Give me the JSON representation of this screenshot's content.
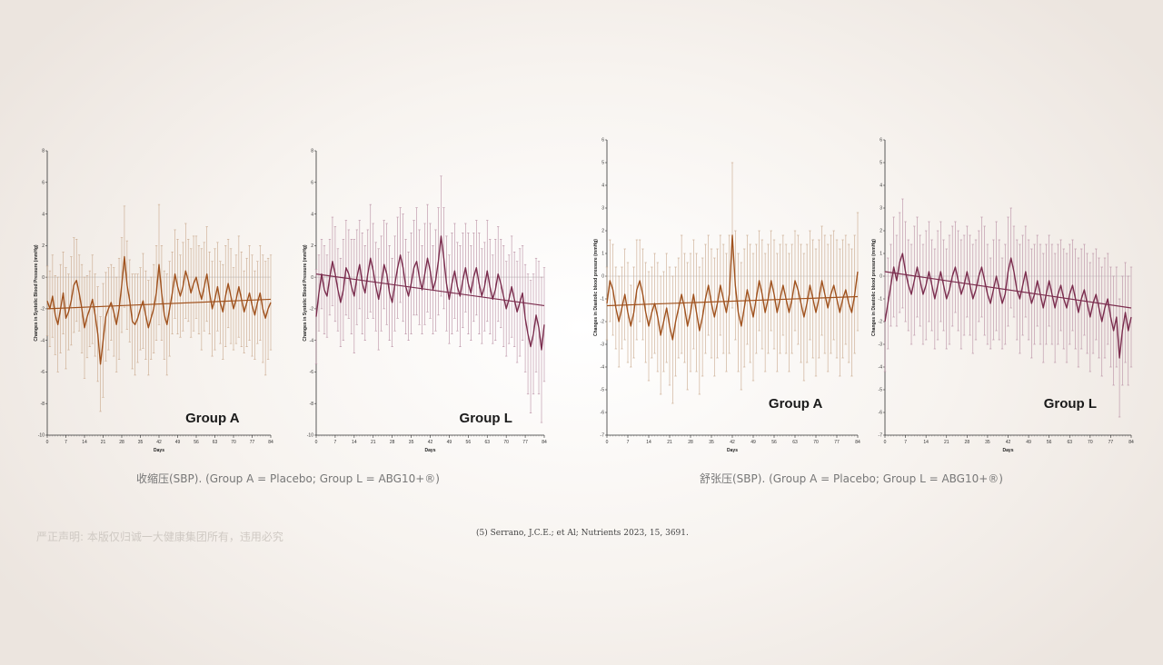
{
  "captions": {
    "systolic": "收缩压(SBP). (Group A = Placebo; Group L = ABG10+®)",
    "diastolic": "舒张压(SBP). (Group A = Placebo; Group L = ABG10+®)"
  },
  "watermark": "严正声明: 本版仅归诚一大健康集团所有，违用必究",
  "citation": "(5) Serrano, J.C.E.; et Al; Nutrients 2023, 15, 3691.",
  "colors": {
    "group_a": "#a0521e",
    "group_l": "#7b2d4e",
    "errorbar_a": "#c9a88c",
    "errorbar_l": "#b98fa3"
  },
  "chart_data": [
    {
      "type": "line",
      "group_label": "Group A",
      "ylabel": "Changes in Systolic Blood Pressure (mmHg)",
      "xlabel": "Days",
      "xlim": [
        0,
        84
      ],
      "ylim": [
        -10,
        8
      ],
      "yticks": [
        "-10",
        "-8",
        "-6",
        "-4",
        "-2",
        "0",
        "2",
        "4",
        "6",
        "8"
      ],
      "xticks": [
        "0",
        "7",
        "14",
        "21",
        "28",
        "35",
        "42",
        "49",
        "56",
        "63",
        "70",
        "77",
        "84"
      ],
      "color": "#a0521e",
      "error_color": "#c9a88c",
      "trend": [
        -2.0,
        -1.4
      ],
      "values": [
        -1.5,
        -2.0,
        -1.2,
        -2.4,
        -3.0,
        -2.0,
        -1.0,
        -2.6,
        -2.2,
        -1.5,
        -0.5,
        -0.2,
        -1.0,
        -2.0,
        -3.2,
        -2.5,
        -2.0,
        -1.4,
        -2.4,
        -3.6,
        -5.5,
        -4.0,
        -2.5,
        -2.0,
        -1.6,
        -2.2,
        -3.0,
        -2.0,
        -0.5,
        1.3,
        -0.5,
        -1.5,
        -2.8,
        -3.0,
        -2.6,
        -2.0,
        -1.5,
        -2.4,
        -3.2,
        -2.6,
        -2.0,
        -1.0,
        0.8,
        -1.0,
        -2.4,
        -3.0,
        -2.0,
        -1.0,
        0.2,
        -0.6,
        -1.2,
        -0.6,
        0.4,
        -0.2,
        -1.0,
        -0.4,
        0.0,
        -0.8,
        -1.4,
        -0.6,
        0.2,
        -1.0,
        -2.0,
        -1.4,
        -0.6,
        -1.6,
        -2.2,
        -1.2,
        -0.4,
        -1.2,
        -2.0,
        -1.4,
        -0.6,
        -1.4,
        -2.2,
        -1.6,
        -1.0,
        -1.8,
        -2.4,
        -1.6,
        -1.0,
        -2.0,
        -2.6,
        -2.0,
        -1.6
      ],
      "errors": [
        2.2,
        2.4,
        2.6,
        2.5,
        3.0,
        2.8,
        2.6,
        3.2,
        2.4,
        2.8,
        3.0,
        2.6,
        2.4,
        2.8,
        3.2,
        2.6,
        2.4,
        2.8,
        2.6,
        3.0,
        3.0,
        3.6,
        2.8,
        2.6,
        2.4,
        2.8,
        3.0,
        3.2,
        3.0,
        3.2,
        2.8,
        2.6,
        3.0,
        3.2,
        2.8,
        2.6,
        3.0,
        2.8,
        3.0,
        2.6,
        2.8,
        3.0,
        3.8,
        3.0,
        2.8,
        3.2,
        3.0,
        2.6,
        2.8,
        3.0,
        2.6,
        2.8,
        3.0,
        2.6,
        2.8,
        3.0,
        2.6,
        2.8,
        3.2,
        2.8,
        3.0,
        2.6,
        3.0,
        3.2,
        2.8,
        2.6,
        3.0,
        3.2,
        2.8,
        3.0,
        2.6,
        2.8,
        3.2,
        3.0,
        2.6,
        2.8,
        3.0,
        3.2,
        2.8,
        2.6,
        3.0,
        3.4,
        3.6,
        3.2,
        3.0
      ]
    },
    {
      "type": "line",
      "group_label": "Group L",
      "ylabel": "Changes in Systolic Blood Pressure (mmHg)",
      "xlabel": "Days",
      "xlim": [
        0,
        84
      ],
      "ylim": [
        -10,
        8
      ],
      "yticks": [
        "-10",
        "-8",
        "-6",
        "-4",
        "-2",
        "0",
        "2",
        "4",
        "6",
        "8"
      ],
      "xticks": [
        "0",
        "7",
        "14",
        "21",
        "28",
        "35",
        "42",
        "49",
        "56",
        "63",
        "70",
        "77",
        "84"
      ],
      "color": "#7b2d4e",
      "error_color": "#b98fa3",
      "trend": [
        0.2,
        -1.8
      ],
      "values": [
        -2.5,
        -1.0,
        0.2,
        -0.8,
        -1.2,
        0.0,
        1.0,
        0.2,
        -0.8,
        -1.6,
        -0.8,
        0.6,
        0.2,
        -0.6,
        -1.2,
        0.0,
        0.8,
        -0.4,
        -1.0,
        0.2,
        1.2,
        0.4,
        -0.6,
        -1.4,
        -0.4,
        0.8,
        0.2,
        -1.0,
        -1.6,
        -0.4,
        0.6,
        1.4,
        0.6,
        -0.6,
        -1.2,
        -0.4,
        0.6,
        1.0,
        0.0,
        -0.8,
        0.2,
        1.2,
        0.4,
        -0.8,
        -0.2,
        1.0,
        2.6,
        1.2,
        -0.4,
        -1.4,
        -0.4,
        0.4,
        -0.6,
        -1.2,
        -0.2,
        0.6,
        -0.4,
        -1.0,
        0.0,
        0.6,
        -0.4,
        -1.2,
        -0.6,
        0.4,
        -0.6,
        -1.4,
        -0.8,
        0.2,
        -0.4,
        -1.2,
        -2.0,
        -1.4,
        -0.6,
        -1.4,
        -2.2,
        -1.6,
        -1.0,
        -2.6,
        -3.6,
        -4.4,
        -3.6,
        -2.4,
        -3.2,
        -4.6,
        -3.0
      ],
      "errors": [
        3.0,
        2.4,
        2.2,
        2.8,
        2.6,
        2.4,
        2.8,
        3.0,
        2.6,
        2.8,
        3.2,
        3.0,
        2.8,
        3.0,
        3.6,
        3.0,
        2.8,
        3.2,
        3.0,
        2.8,
        3.4,
        3.0,
        2.8,
        3.2,
        3.0,
        2.8,
        3.2,
        3.0,
        2.8,
        3.0,
        3.2,
        3.0,
        3.4,
        3.0,
        2.8,
        3.2,
        3.0,
        3.4,
        3.0,
        2.8,
        3.2,
        3.4,
        3.0,
        2.8,
        3.2,
        3.4,
        3.8,
        3.2,
        3.0,
        2.8,
        3.2,
        3.0,
        2.8,
        3.2,
        3.0,
        2.8,
        3.2,
        3.0,
        2.8,
        3.0,
        3.2,
        3.0,
        2.8,
        3.2,
        3.0,
        2.8,
        3.2,
        3.0,
        2.8,
        3.2,
        3.0,
        2.8,
        3.2,
        3.0,
        3.2,
        3.4,
        3.0,
        3.4,
        3.8,
        4.2,
        3.8,
        3.6,
        4.2,
        4.6,
        3.6
      ]
    },
    {
      "type": "line",
      "group_label": "Group A",
      "ylabel": "Changes in Diastolic blood pressure (mmHg)",
      "xlabel": "Days",
      "xlim": [
        0,
        84
      ],
      "ylim": [
        -7,
        6
      ],
      "yticks": [
        "-7",
        "-6",
        "-5",
        "-4",
        "-3",
        "-2",
        "-1",
        "0",
        "1",
        "2",
        "3",
        "4",
        "5",
        "6"
      ],
      "xticks": [
        "0",
        "7",
        "14",
        "21",
        "28",
        "35",
        "42",
        "49",
        "56",
        "63",
        "70",
        "77",
        "84"
      ],
      "color": "#a0521e",
      "error_color": "#c9a88c",
      "trend": [
        -1.3,
        -0.9
      ],
      "values": [
        -1.2,
        -0.2,
        -0.6,
        -1.4,
        -2.0,
        -1.4,
        -0.8,
        -1.6,
        -2.2,
        -1.6,
        -0.6,
        -0.2,
        -0.8,
        -1.6,
        -2.2,
        -1.6,
        -1.2,
        -1.8,
        -2.6,
        -2.0,
        -1.4,
        -2.2,
        -2.8,
        -2.0,
        -1.4,
        -0.8,
        -1.4,
        -2.2,
        -1.6,
        -0.8,
        -1.6,
        -2.4,
        -1.8,
        -1.0,
        -0.4,
        -1.2,
        -1.8,
        -1.2,
        -0.4,
        -1.0,
        -1.6,
        -0.8,
        1.8,
        -0.4,
        -1.6,
        -2.2,
        -1.4,
        -0.6,
        -1.2,
        -1.8,
        -1.0,
        -0.2,
        -0.8,
        -1.6,
        -1.0,
        -0.2,
        -0.8,
        -1.6,
        -1.0,
        -0.4,
        -1.0,
        -1.6,
        -1.0,
        -0.2,
        -0.6,
        -1.2,
        -1.8,
        -1.2,
        -0.4,
        -1.0,
        -1.6,
        -1.0,
        -0.2,
        -0.8,
        -1.4,
        -0.8,
        -0.4,
        -1.0,
        -1.6,
        -1.0,
        -0.6,
        -1.2,
        -1.6,
        -0.8,
        0.2
      ],
      "errors": [
        1.6,
        1.8,
        2.0,
        1.8,
        2.0,
        1.8,
        2.0,
        2.2,
        1.8,
        2.0,
        2.2,
        1.8,
        2.0,
        2.2,
        2.4,
        2.0,
        2.2,
        2.4,
        2.6,
        2.2,
        2.4,
        2.6,
        2.8,
        2.4,
        2.2,
        2.6,
        2.4,
        2.8,
        2.6,
        2.4,
        2.6,
        2.8,
        2.6,
        2.4,
        2.2,
        2.4,
        2.6,
        2.4,
        2.2,
        2.4,
        2.6,
        2.6,
        3.2,
        2.4,
        2.6,
        2.8,
        2.6,
        2.4,
        2.6,
        2.8,
        2.4,
        2.2,
        2.4,
        2.6,
        2.4,
        2.2,
        2.4,
        2.6,
        2.4,
        2.2,
        2.4,
        2.6,
        2.4,
        2.2,
        2.4,
        2.6,
        2.8,
        2.6,
        2.4,
        2.6,
        2.8,
        2.6,
        2.4,
        2.6,
        2.8,
        2.6,
        2.4,
        2.6,
        2.8,
        2.6,
        2.4,
        2.6,
        2.8,
        2.6,
        2.6
      ]
    },
    {
      "type": "line",
      "group_label": "Group L",
      "ylabel": "Changes in Diastolic blood pressure (mmHg)",
      "xlabel": "Days",
      "xlim": [
        0,
        84
      ],
      "ylim": [
        -7,
        6
      ],
      "yticks": [
        "-7",
        "-6",
        "-5",
        "-4",
        "-3",
        "-2",
        "-1",
        "0",
        "1",
        "2",
        "3",
        "4",
        "5",
        "6"
      ],
      "xticks": [
        "0",
        "7",
        "14",
        "21",
        "28",
        "35",
        "42",
        "49",
        "56",
        "63",
        "70",
        "77",
        "84"
      ],
      "color": "#7b2d4e",
      "error_color": "#b98fa3",
      "trend": [
        0.2,
        -1.4
      ],
      "values": [
        -2.0,
        -1.2,
        -0.4,
        0.4,
        -0.2,
        0.6,
        1.0,
        0.2,
        -0.4,
        -0.8,
        -0.2,
        0.4,
        -0.2,
        -0.8,
        -0.4,
        0.2,
        -0.4,
        -1.0,
        -0.4,
        0.2,
        -0.4,
        -1.0,
        -0.6,
        0.0,
        0.4,
        -0.2,
        -0.8,
        -0.4,
        0.2,
        -0.4,
        -1.0,
        -0.6,
        0.0,
        0.4,
        -0.2,
        -0.8,
        -1.2,
        -0.6,
        0.0,
        -0.6,
        -1.2,
        -0.8,
        0.2,
        0.8,
        0.2,
        -0.6,
        -1.0,
        -0.4,
        0.2,
        -0.6,
        -1.2,
        -0.8,
        -0.2,
        -0.8,
        -1.4,
        -0.8,
        -0.2,
        -0.8,
        -1.4,
        -0.8,
        -0.4,
        -1.0,
        -1.4,
        -0.8,
        -0.4,
        -1.0,
        -1.6,
        -1.0,
        -0.6,
        -1.2,
        -1.8,
        -1.2,
        -0.8,
        -1.4,
        -2.0,
        -1.4,
        -1.0,
        -1.8,
        -2.4,
        -1.8,
        -3.6,
        -2.4,
        -1.6,
        -2.4,
        -1.8
      ],
      "errors": [
        2.2,
        2.0,
        1.8,
        2.2,
        2.0,
        2.2,
        2.4,
        2.2,
        2.0,
        2.2,
        2.4,
        2.2,
        2.0,
        2.2,
        2.4,
        2.2,
        2.0,
        2.2,
        2.4,
        2.2,
        2.0,
        2.2,
        2.4,
        2.2,
        2.0,
        2.2,
        2.4,
        2.2,
        2.0,
        2.2,
        2.4,
        2.2,
        2.0,
        2.2,
        2.4,
        2.2,
        2.0,
        2.2,
        2.4,
        2.2,
        2.0,
        2.2,
        2.4,
        2.2,
        2.0,
        2.2,
        2.4,
        2.2,
        2.0,
        2.2,
        2.4,
        2.2,
        2.0,
        2.2,
        2.4,
        2.2,
        2.0,
        2.2,
        2.4,
        2.2,
        2.0,
        2.2,
        2.4,
        2.2,
        2.0,
        2.2,
        2.4,
        2.2,
        2.0,
        2.2,
        2.4,
        2.2,
        2.0,
        2.2,
        2.4,
        2.2,
        2.0,
        2.2,
        2.4,
        2.2,
        2.6,
        2.4,
        2.2,
        2.4,
        2.2
      ]
    }
  ]
}
